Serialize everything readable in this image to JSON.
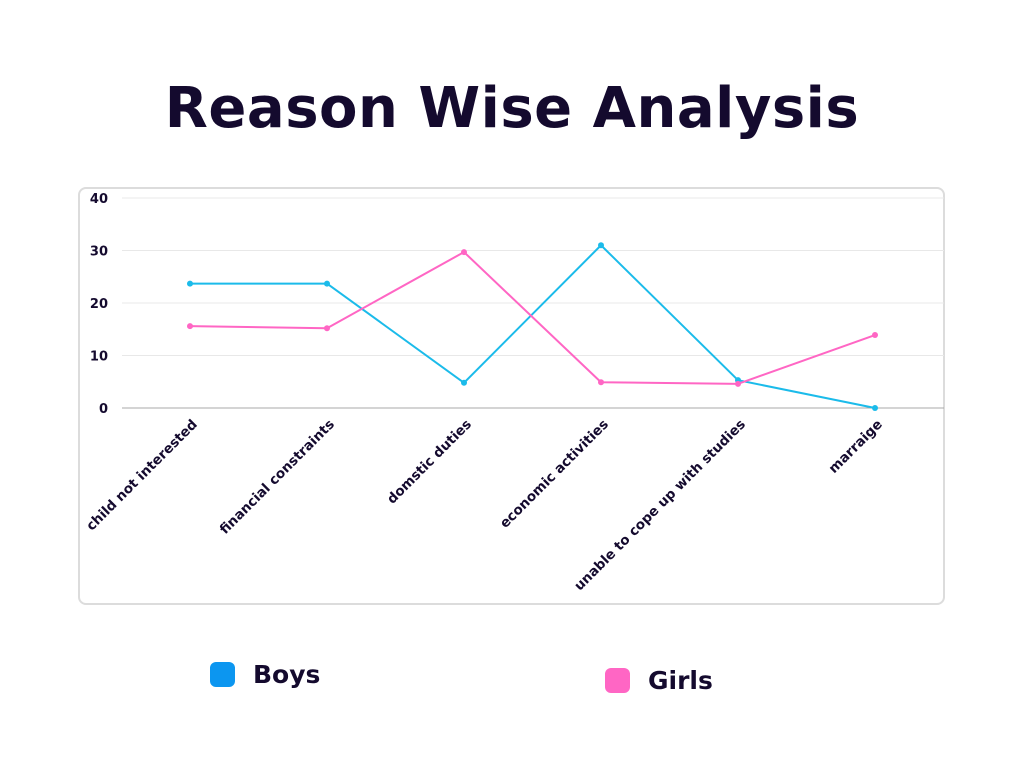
{
  "title": "Reason Wise Analysis",
  "colors": {
    "boys": "#1bbbea",
    "girls": "#ff66c4",
    "boys_legend": "#0c96f0",
    "girls_legend": "#ff66c4",
    "text": "#140a2e",
    "grid": "#e8e8e8",
    "axis": "#a8a8a8"
  },
  "chart_data": {
    "type": "line",
    "categories": [
      "child not interested",
      "financial constraints",
      "domstic duties",
      "economic activities",
      "unable to cope up with studies",
      "marraige"
    ],
    "series": [
      {
        "name": "Boys",
        "values": [
          23.7,
          23.7,
          4.8,
          31,
          5.3,
          0
        ]
      },
      {
        "name": "Girls",
        "values": [
          15.6,
          15.2,
          29.7,
          4.9,
          4.6,
          13.9
        ]
      }
    ],
    "yticks": [
      "0",
      "10",
      "20",
      "30",
      "40"
    ],
    "ylim": [
      0,
      40
    ],
    "grid": true,
    "legend": "bottom"
  },
  "legend": [
    {
      "label": "Boys"
    },
    {
      "label": "Girls"
    }
  ]
}
